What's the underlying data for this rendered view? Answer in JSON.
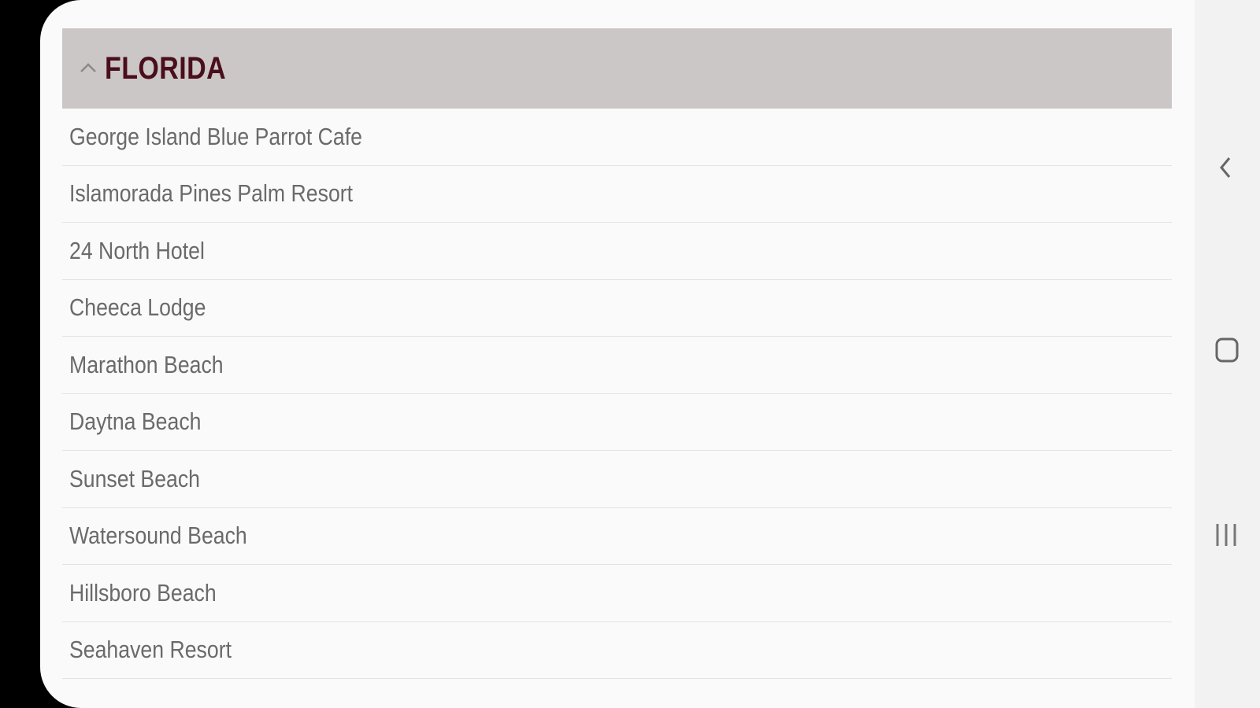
{
  "section": {
    "title": "FLORIDA",
    "icon": "chevron-up-icon",
    "expanded": true
  },
  "items": [
    "George Island Blue Parrot Cafe",
    "Islamorada Pines Palm Resort",
    "24 North Hotel",
    "Cheeca Lodge",
    "Marathon Beach",
    "Daytna Beach",
    "Sunset Beach",
    "Watersound Beach",
    "Hillsboro Beach",
    "Seahaven Resort"
  ],
  "nav": {
    "back": "back-icon",
    "home": "home-icon",
    "recents": "recents-icon"
  },
  "colors": {
    "header_bg": "#cbc7c6",
    "title": "#4a0e1c",
    "item_text": "#6a6a6a"
  }
}
